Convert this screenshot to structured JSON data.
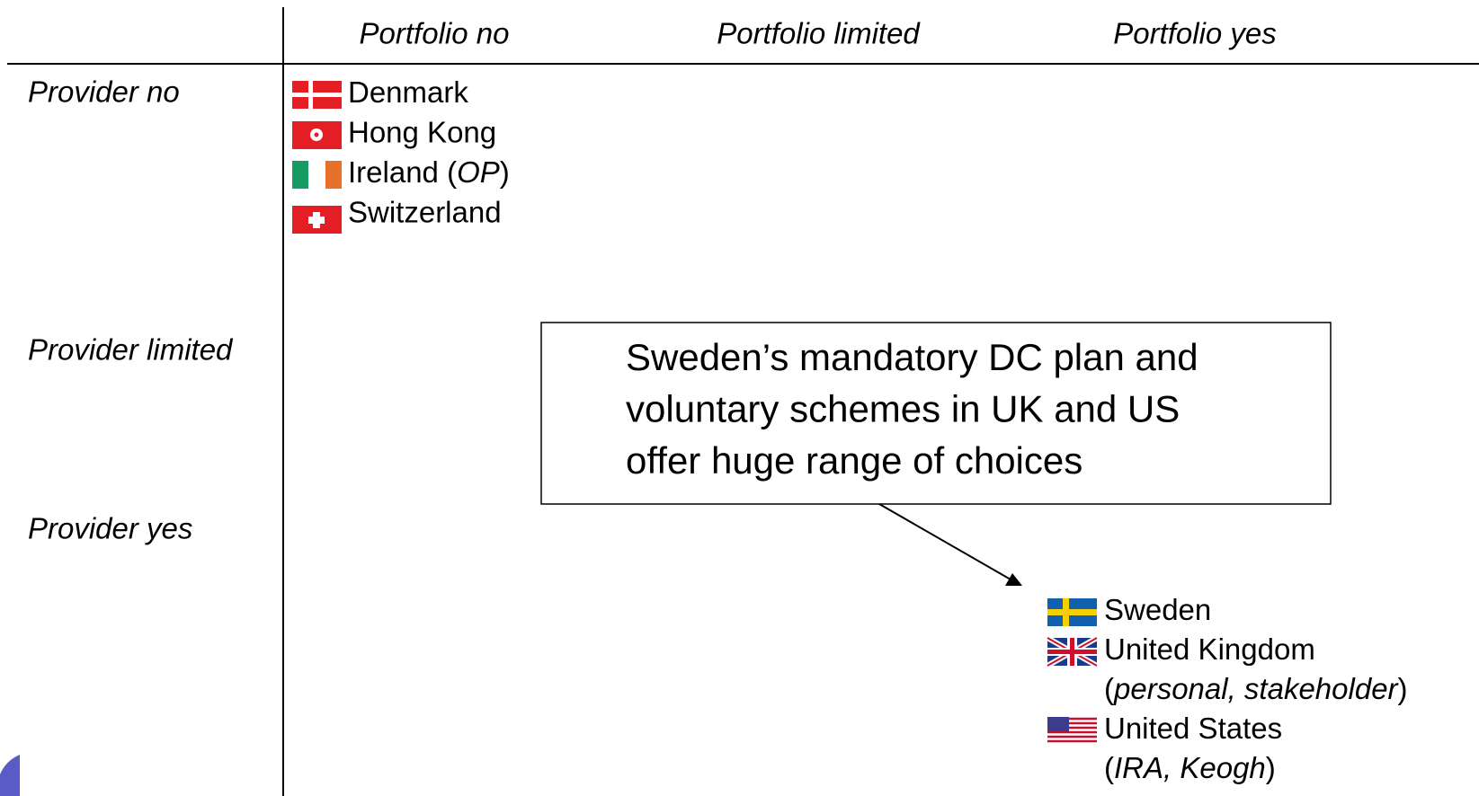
{
  "columns": [
    "Portfolio no",
    "Portfolio limited",
    "Portfolio yes"
  ],
  "rows": [
    "Provider no",
    "Provider limited",
    "Provider yes"
  ],
  "provider_no_portfolio_no": [
    [
      [
        {
          "text": "Denmark"
        }
      ]
    ],
    [
      [
        {
          "text": "Hong Kong"
        }
      ]
    ],
    [
      [
        {
          "text": "Ireland ("
        },
        {
          "text": "OP",
          "italic": true
        },
        {
          "text": ")"
        }
      ]
    ],
    [
      [
        {
          "text": "Switzerland"
        }
      ]
    ]
  ],
  "provider_yes_portfolio_yes": [
    [
      [
        {
          "text": "Sweden"
        }
      ]
    ],
    [
      [
        {
          "text": "United Kingdom"
        }
      ],
      [
        {
          "text": "("
        },
        {
          "text": "personal, stakeholder",
          "italic": true
        },
        {
          "text": ")"
        }
      ]
    ],
    [
      [
        {
          "text": "United States"
        }
      ],
      [
        {
          "text": "("
        },
        {
          "text": "IRA, Keogh",
          "italic": true
        },
        {
          "text": ")"
        }
      ]
    ]
  ],
  "callout": {
    "bullet": "",
    "lines": [
      "Sweden’s mandatory DC plan and",
      "voluntary schemes in UK and US",
      "offer huge range of choices"
    ]
  }
}
